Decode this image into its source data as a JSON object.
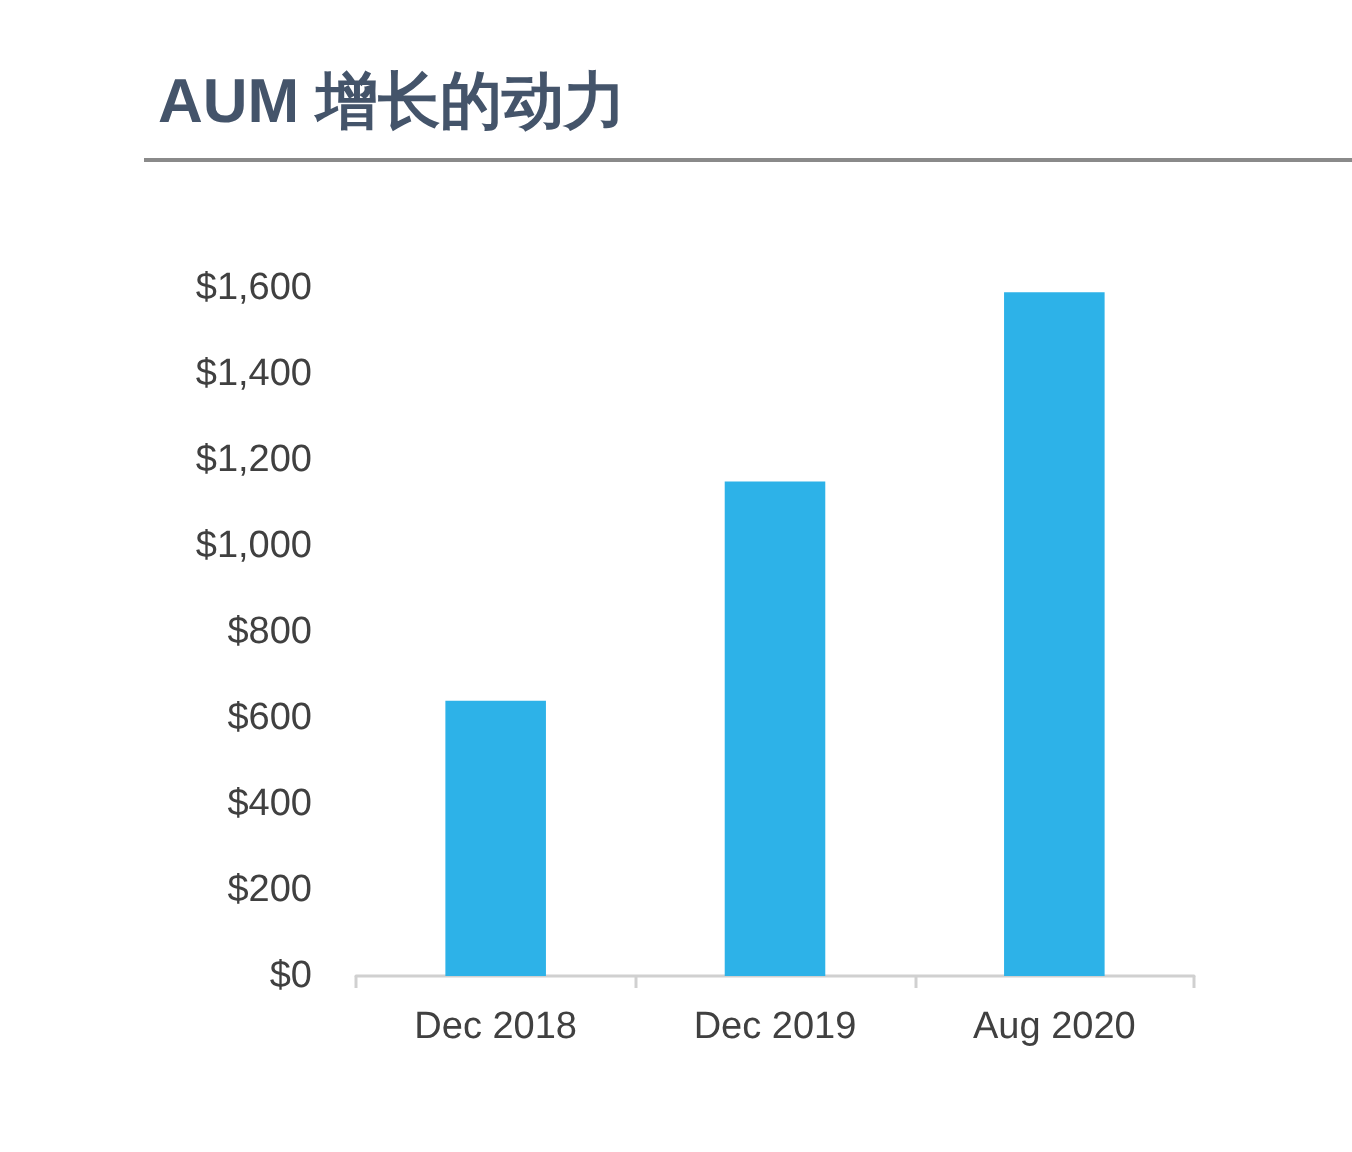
{
  "chart_data": {
    "type": "bar",
    "title": "AUM 增长的动力",
    "categories": [
      "Dec 2018",
      "Dec 2019",
      "Aug 2020"
    ],
    "values": [
      640,
      1150,
      1590
    ],
    "color": "#2db2e8",
    "ylim": [
      0,
      1600
    ],
    "yticks": [
      {
        "value": 0,
        "label": "$0"
      },
      {
        "value": 200,
        "label": "$200"
      },
      {
        "value": 400,
        "label": "$400"
      },
      {
        "value": 600,
        "label": "$600"
      },
      {
        "value": 800,
        "label": "$800"
      },
      {
        "value": 1000,
        "label": "$1,000"
      },
      {
        "value": 1200,
        "label": "$1,200"
      },
      {
        "value": 1400,
        "label": "$1,400"
      },
      {
        "value": 1600,
        "label": "$1,600"
      }
    ],
    "grid": false
  }
}
